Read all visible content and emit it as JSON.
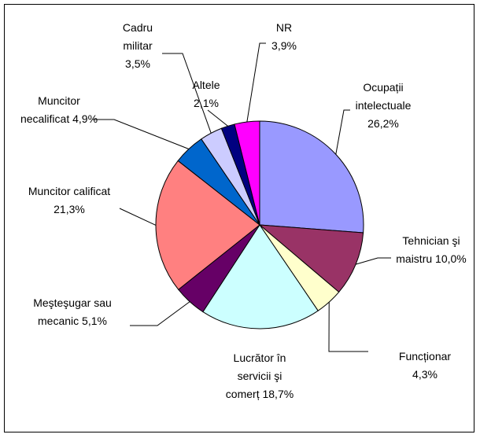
{
  "chart_data": {
    "type": "pie",
    "categories": [
      "Ocupații intelectuale",
      "Tehnician şi maistru",
      "Funcționar",
      "Lucrător în servicii şi comerț",
      "Meşteşugar sau mecanic",
      "Muncitor calificat",
      "Muncitor necalificat",
      "Cadru militar",
      "Altele",
      "NR"
    ],
    "values": [
      26.2,
      10.0,
      4.3,
      18.7,
      5.1,
      21.3,
      4.9,
      3.5,
      2.1,
      3.9
    ],
    "value_labels": [
      "26,2%",
      "10,0%",
      "4,3%",
      "18,7%",
      "5,1%",
      "21,3%",
      "4,9%",
      "3,5%",
      "2,1%",
      "3,9%"
    ],
    "colors": [
      "#9999ff",
      "#993366",
      "#ffffcc",
      "#ccffff",
      "#660066",
      "#ff8080",
      "#0066cc",
      "#ccccff",
      "#000080",
      "#ff00ff"
    ]
  }
}
